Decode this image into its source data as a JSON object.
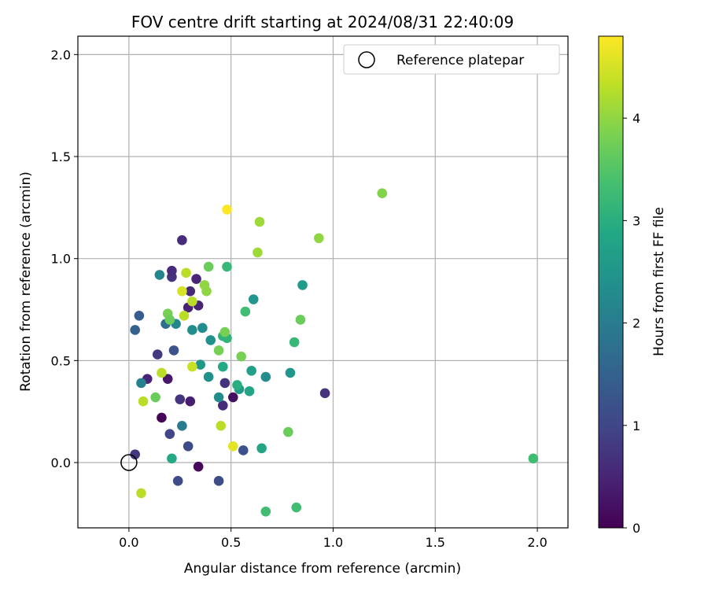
{
  "chart_data": {
    "type": "scatter",
    "title": "FOV centre drift starting at 2024/08/31 22:40:09",
    "xlabel": "Angular distance from reference (arcmin)",
    "ylabel": "Rotation from reference (arcmin)",
    "xlim": [
      -0.25,
      2.15
    ],
    "ylim": [
      -0.32,
      2.09
    ],
    "xticks": [
      "0.0",
      "0.5",
      "1.0",
      "1.5",
      "2.0"
    ],
    "yticks": [
      "0.0",
      "0.5",
      "1.0",
      "1.5",
      "2.0"
    ],
    "grid": true,
    "legend": {
      "position": "top-right",
      "entries": [
        "Reference platepar"
      ]
    },
    "reference": {
      "x": 0.0,
      "y": 0.0
    },
    "colorbar": {
      "label": "Hours from first FF file",
      "colormap": "viridis",
      "range": [
        0,
        4.8
      ],
      "ticks": [
        "0",
        "1",
        "2",
        "3",
        "4"
      ]
    },
    "points": [
      {
        "x": 0.51,
        "y": 0.32,
        "c": 0.2
      },
      {
        "x": 0.34,
        "y": -0.02,
        "c": 0.1
      },
      {
        "x": 0.16,
        "y": 0.22,
        "c": 0.05
      },
      {
        "x": 0.19,
        "y": 0.41,
        "c": 0.3
      },
      {
        "x": 0.09,
        "y": 0.41,
        "c": 0.5
      },
      {
        "x": 0.3,
        "y": 0.3,
        "c": 0.4
      },
      {
        "x": 0.26,
        "y": 1.09,
        "c": 0.6
      },
      {
        "x": 0.33,
        "y": 0.9,
        "c": 0.5
      },
      {
        "x": 0.29,
        "y": 0.76,
        "c": 0.45
      },
      {
        "x": 0.34,
        "y": 0.77,
        "c": 0.5
      },
      {
        "x": 0.3,
        "y": 0.84,
        "c": 0.55
      },
      {
        "x": 0.21,
        "y": 0.91,
        "c": 0.7
      },
      {
        "x": 0.21,
        "y": 0.94,
        "c": 0.6
      },
      {
        "x": 0.46,
        "y": 0.28,
        "c": 0.6
      },
      {
        "x": 0.25,
        "y": 0.31,
        "c": 0.7
      },
      {
        "x": 0.47,
        "y": 0.39,
        "c": 0.7
      },
      {
        "x": 0.14,
        "y": 0.53,
        "c": 0.8
      },
      {
        "x": 0.96,
        "y": 0.34,
        "c": 0.7
      },
      {
        "x": 0.03,
        "y": 0.04,
        "c": 0.8
      },
      {
        "x": 0.2,
        "y": 0.14,
        "c": 1.0
      },
      {
        "x": 0.29,
        "y": 0.08,
        "c": 1.1
      },
      {
        "x": 0.24,
        "y": -0.09,
        "c": 1.1
      },
      {
        "x": 0.44,
        "y": -0.09,
        "c": 1.1
      },
      {
        "x": 0.56,
        "y": 0.06,
        "c": 1.2
      },
      {
        "x": 0.22,
        "y": 0.55,
        "c": 1.2
      },
      {
        "x": 0.05,
        "y": 0.72,
        "c": 1.4
      },
      {
        "x": 0.03,
        "y": 0.65,
        "c": 1.5
      },
      {
        "x": 0.18,
        "y": 0.68,
        "c": 1.7
      },
      {
        "x": 0.26,
        "y": 0.18,
        "c": 2.0
      },
      {
        "x": 0.06,
        "y": 0.39,
        "c": 2.1
      },
      {
        "x": 0.15,
        "y": 0.92,
        "c": 2.2
      },
      {
        "x": 0.23,
        "y": 0.68,
        "c": 2.2
      },
      {
        "x": 0.36,
        "y": 0.66,
        "c": 2.3
      },
      {
        "x": 0.31,
        "y": 0.65,
        "c": 2.3
      },
      {
        "x": 0.4,
        "y": 0.6,
        "c": 2.4
      },
      {
        "x": 0.44,
        "y": 0.32,
        "c": 2.3
      },
      {
        "x": 0.39,
        "y": 0.42,
        "c": 2.4
      },
      {
        "x": 0.35,
        "y": 0.48,
        "c": 2.5
      },
      {
        "x": 0.67,
        "y": 0.42,
        "c": 2.3
      },
      {
        "x": 0.79,
        "y": 0.44,
        "c": 2.5
      },
      {
        "x": 0.61,
        "y": 0.8,
        "c": 2.5
      },
      {
        "x": 0.85,
        "y": 0.87,
        "c": 2.6
      },
      {
        "x": 0.54,
        "y": 0.36,
        "c": 2.6
      },
      {
        "x": 0.6,
        "y": 0.45,
        "c": 2.7
      },
      {
        "x": 0.59,
        "y": 0.35,
        "c": 2.8
      },
      {
        "x": 0.65,
        "y": 0.07,
        "c": 2.8
      },
      {
        "x": 0.21,
        "y": 0.02,
        "c": 2.9
      },
      {
        "x": 0.46,
        "y": 0.47,
        "c": 2.9
      },
      {
        "x": 0.53,
        "y": 0.38,
        "c": 3.0
      },
      {
        "x": 0.48,
        "y": 0.61,
        "c": 3.1
      },
      {
        "x": 0.46,
        "y": 0.62,
        "c": 3.1
      },
      {
        "x": 0.48,
        "y": 0.96,
        "c": 3.2
      },
      {
        "x": 0.57,
        "y": 0.74,
        "c": 3.3
      },
      {
        "x": 0.81,
        "y": 0.59,
        "c": 3.2
      },
      {
        "x": 0.67,
        "y": -0.24,
        "c": 3.3
      },
      {
        "x": 0.82,
        "y": -0.22,
        "c": 3.3
      },
      {
        "x": 1.98,
        "y": 0.02,
        "c": 3.3
      },
      {
        "x": 0.39,
        "y": 0.96,
        "c": 3.7
      },
      {
        "x": 0.19,
        "y": 0.73,
        "c": 3.8
      },
      {
        "x": 0.2,
        "y": 0.7,
        "c": 3.7
      },
      {
        "x": 0.13,
        "y": 0.32,
        "c": 3.7
      },
      {
        "x": 0.44,
        "y": 0.55,
        "c": 3.8
      },
      {
        "x": 0.78,
        "y": 0.15,
        "c": 3.7
      },
      {
        "x": 0.84,
        "y": 0.7,
        "c": 3.7
      },
      {
        "x": 0.55,
        "y": 0.52,
        "c": 3.8
      },
      {
        "x": 0.47,
        "y": 0.64,
        "c": 3.8
      },
      {
        "x": 0.37,
        "y": 0.87,
        "c": 4.0
      },
      {
        "x": 0.38,
        "y": 0.84,
        "c": 4.0
      },
      {
        "x": 1.24,
        "y": 1.32,
        "c": 3.9
      },
      {
        "x": 0.64,
        "y": 1.18,
        "c": 4.1
      },
      {
        "x": 0.63,
        "y": 1.03,
        "c": 4.1
      },
      {
        "x": 0.93,
        "y": 1.1,
        "c": 4.0
      },
      {
        "x": 0.31,
        "y": 0.79,
        "c": 4.3
      },
      {
        "x": 0.28,
        "y": 0.93,
        "c": 4.3
      },
      {
        "x": 0.27,
        "y": 0.72,
        "c": 4.3
      },
      {
        "x": 0.16,
        "y": 0.44,
        "c": 4.3
      },
      {
        "x": 0.07,
        "y": 0.3,
        "c": 4.3
      },
      {
        "x": 0.45,
        "y": 0.18,
        "c": 4.3
      },
      {
        "x": 0.06,
        "y": -0.15,
        "c": 4.3
      },
      {
        "x": 0.31,
        "y": 0.47,
        "c": 4.4
      },
      {
        "x": 0.26,
        "y": 0.84,
        "c": 4.5
      },
      {
        "x": 0.51,
        "y": 0.08,
        "c": 4.6
      },
      {
        "x": 0.48,
        "y": 1.24,
        "c": 4.8
      }
    ]
  }
}
